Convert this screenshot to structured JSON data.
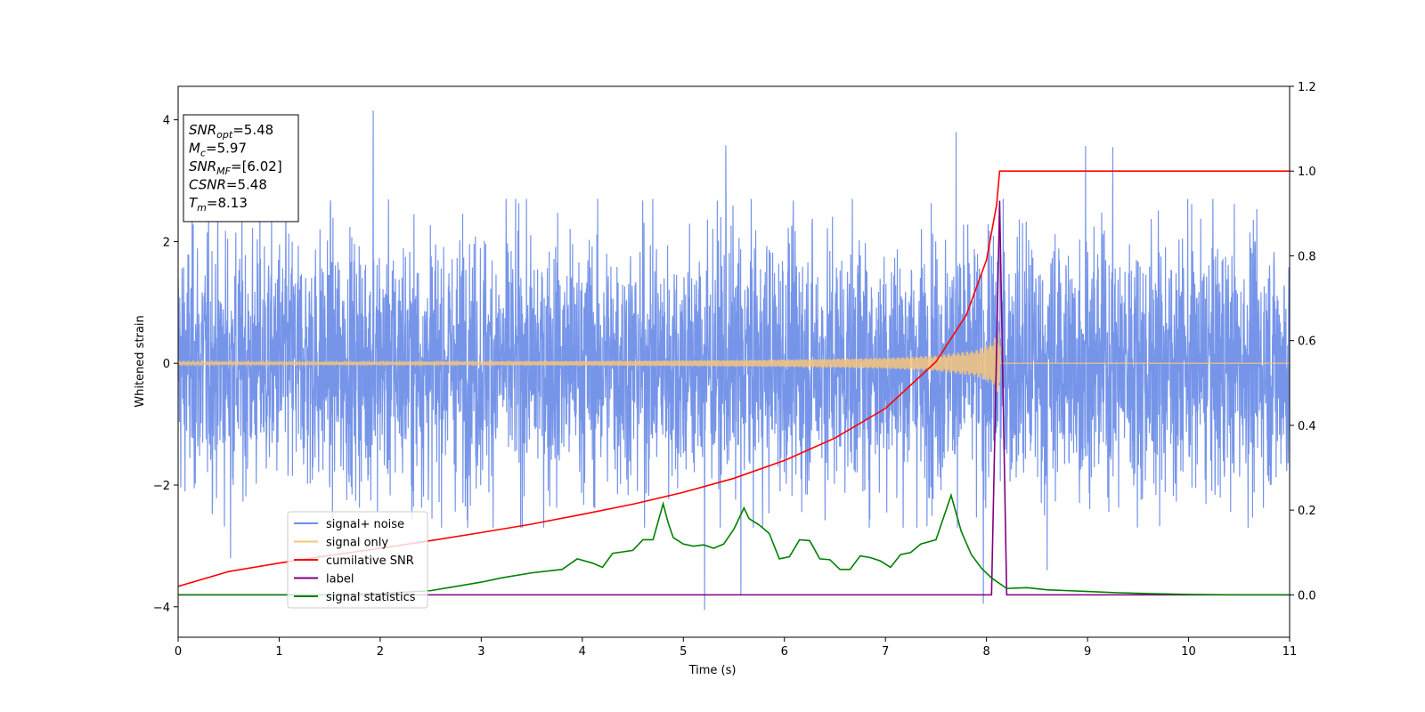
{
  "chart_data": {
    "type": "line",
    "xlabel": "Time (s)",
    "ylabel_left": "Whitened strain",
    "ylabel_right": "",
    "xlim": [
      0,
      11
    ],
    "ylim_left": [
      -4.5,
      4.55
    ],
    "ylim_right": [
      -0.1,
      1.2
    ],
    "x_ticks": [
      0,
      1,
      2,
      3,
      4,
      5,
      6,
      7,
      8,
      9,
      10,
      11
    ],
    "y_ticks_left": [
      -4,
      -2,
      0,
      2,
      4
    ],
    "y_ticks_left_labels": [
      "−4",
      "−2",
      "0",
      "2",
      "4"
    ],
    "y_ticks_right": [
      0.0,
      0.2,
      0.4,
      0.6,
      0.8,
      1.0,
      1.2
    ],
    "y_ticks_right_labels": [
      "0.0",
      "0.2",
      "0.4",
      "0.6",
      "0.8",
      "1.0",
      "1.2"
    ],
    "grid": false,
    "legend_position": "lower-left",
    "info_box": [
      {
        "base": "SNR",
        "sub": "opt",
        "rest": "=5.48"
      },
      {
        "base": "M",
        "sub": "c",
        "rest": "=5.97"
      },
      {
        "base": "SNR",
        "sub": "MF",
        "rest": "=[6.02]"
      },
      {
        "base": "CSNR",
        "sub": "",
        "rest": "=5.48"
      },
      {
        "base": "T",
        "sub": "m",
        "rest": "=8.13"
      }
    ],
    "series": [
      {
        "name": "signal+ noise",
        "axis": "left",
        "color": "#6f8fe8",
        "noise_envelope": {
          "x": [
            0,
            11
          ],
          "typical_range": [
            -2.3,
            2.3
          ],
          "peaks_max": 4.15,
          "peaks_min": -4.05
        },
        "notable_peaks": [
          {
            "x": 1.93,
            "y": 4.15
          },
          {
            "x": 5.42,
            "y": 3.58
          },
          {
            "x": 7.7,
            "y": 3.8
          },
          {
            "x": 8.98,
            "y": 3.57
          },
          {
            "x": 9.25,
            "y": 3.55
          },
          {
            "x": 5.21,
            "y": -4.05
          },
          {
            "x": 5.57,
            "y": -3.8
          },
          {
            "x": 7.97,
            "y": -3.95
          },
          {
            "x": 8.6,
            "y": -3.4
          },
          {
            "x": 0.52,
            "y": -3.2
          }
        ]
      },
      {
        "name": "signal only",
        "axis": "left",
        "color": "#f6c67c",
        "envelope": {
          "x": [
            0,
            2,
            4,
            5,
            6,
            7,
            7.5,
            7.9,
            8.05,
            8.13,
            8.14,
            11
          ],
          "amp": [
            0.02,
            0.025,
            0.035,
            0.045,
            0.06,
            0.09,
            0.13,
            0.22,
            0.35,
            0.55,
            0.0,
            0.0
          ]
        }
      },
      {
        "name": "cumilative SNR",
        "axis": "right",
        "color": "#ff0000",
        "x": [
          0,
          0.5,
          1,
          1.5,
          2,
          2.5,
          3,
          3.5,
          4,
          4.5,
          5,
          5.5,
          6,
          6.5,
          7,
          7.5,
          7.8,
          8.0,
          8.1,
          8.13,
          11
        ],
        "y": [
          0.02,
          0.055,
          0.075,
          0.093,
          0.11,
          0.128,
          0.147,
          0.167,
          0.19,
          0.214,
          0.242,
          0.275,
          0.317,
          0.37,
          0.44,
          0.55,
          0.66,
          0.79,
          0.92,
          1.0,
          1.0
        ]
      },
      {
        "name": "label",
        "axis": "right",
        "color": "#800080",
        "x": [
          0,
          8.05,
          8.13,
          8.2,
          11
        ],
        "y": [
          0.0,
          0.0,
          0.93,
          0.0,
          0.0
        ]
      },
      {
        "name": "signal statistics",
        "axis": "right",
        "color": "#008000",
        "x": [
          0,
          0.5,
          1,
          1.5,
          2,
          2.5,
          2.7,
          3,
          3.2,
          3.5,
          3.8,
          3.95,
          4.1,
          4.2,
          4.3,
          4.5,
          4.6,
          4.7,
          4.8,
          4.85,
          4.9,
          5.0,
          5.1,
          5.2,
          5.3,
          5.4,
          5.5,
          5.6,
          5.65,
          5.75,
          5.85,
          5.95,
          6.05,
          6.15,
          6.25,
          6.35,
          6.45,
          6.55,
          6.65,
          6.75,
          6.85,
          6.95,
          7.05,
          7.15,
          7.25,
          7.35,
          7.5,
          7.65,
          7.75,
          7.85,
          7.95,
          8.05,
          8.2,
          8.4,
          8.6,
          8.8,
          9.0,
          9.3,
          9.6,
          10,
          10.5,
          11
        ],
        "y": [
          0.0,
          0.0,
          0.0,
          0.0,
          0.003,
          0.01,
          0.018,
          0.03,
          0.04,
          0.052,
          0.06,
          0.085,
          0.075,
          0.065,
          0.098,
          0.105,
          0.13,
          0.13,
          0.215,
          0.17,
          0.135,
          0.12,
          0.115,
          0.118,
          0.11,
          0.12,
          0.155,
          0.205,
          0.18,
          0.165,
          0.145,
          0.085,
          0.09,
          0.13,
          0.128,
          0.085,
          0.083,
          0.06,
          0.06,
          0.092,
          0.088,
          0.08,
          0.065,
          0.095,
          0.1,
          0.12,
          0.13,
          0.235,
          0.15,
          0.095,
          0.063,
          0.04,
          0.015,
          0.017,
          0.012,
          0.01,
          0.008,
          0.005,
          0.003,
          0.001,
          0.0,
          0.0
        ]
      }
    ]
  }
}
